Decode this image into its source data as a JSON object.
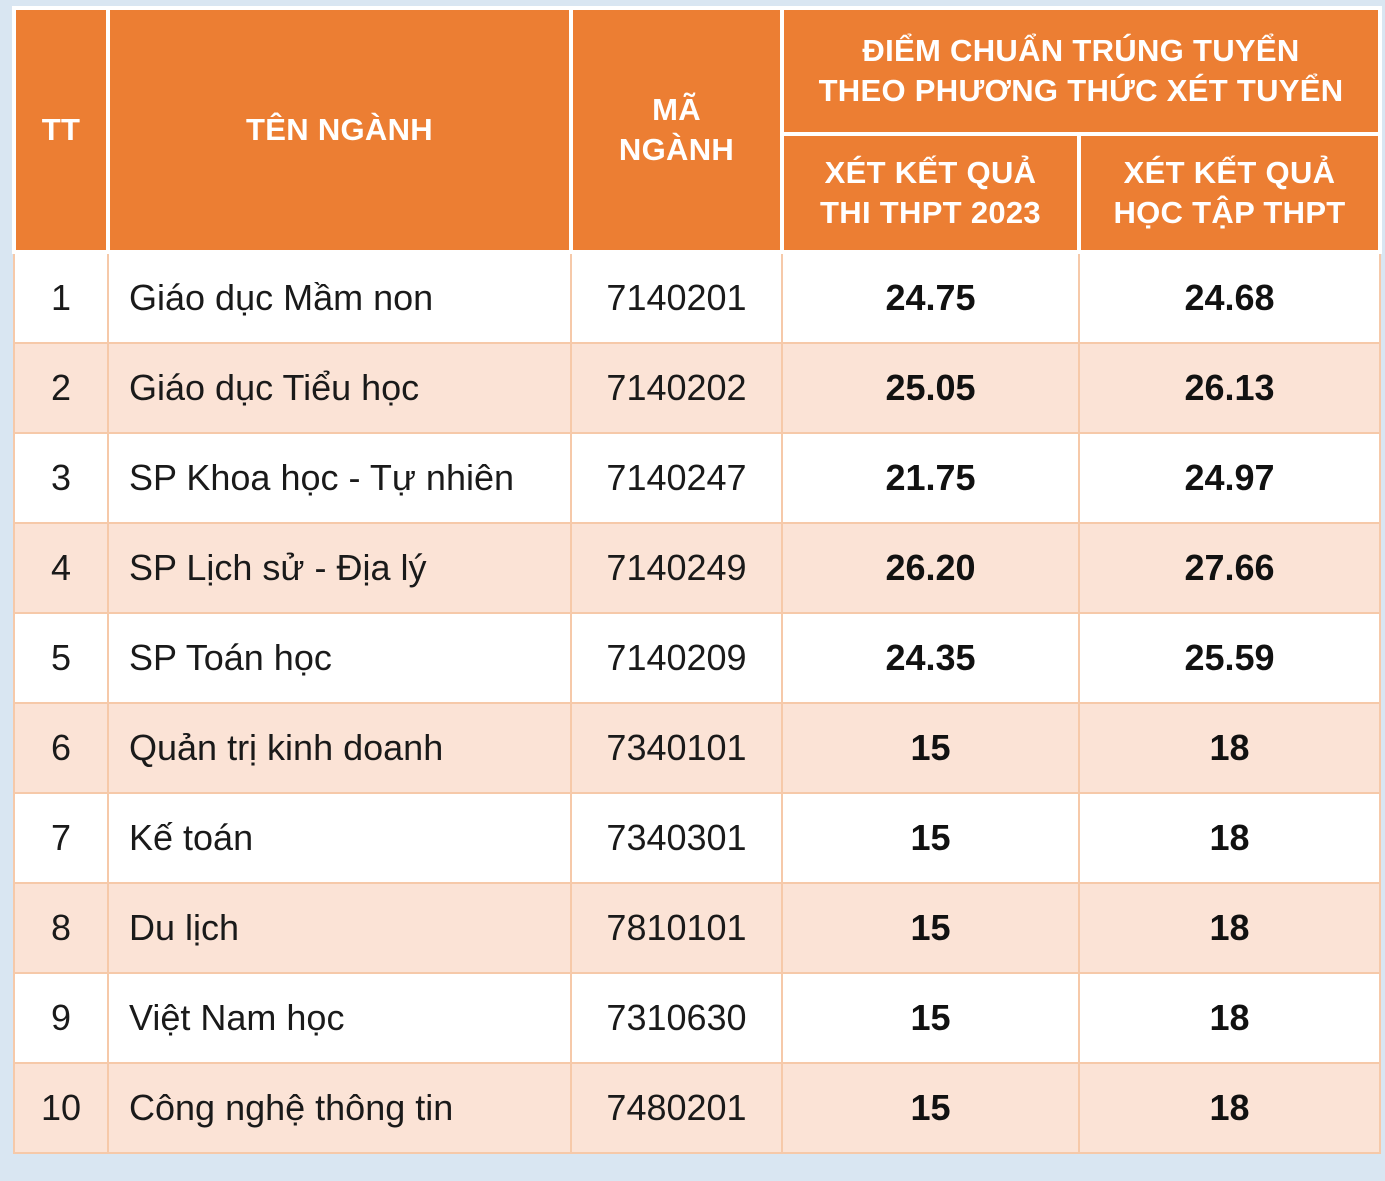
{
  "header": {
    "tt": "TT",
    "name": "TÊN NGÀNH",
    "code_line1": "MÃ",
    "code_line2": "NGÀNH",
    "group_line1": "ĐIỂM CHUẨN TRÚNG TUYỂN",
    "group_line2": "THEO PHƯƠNG THỨC XÉT TUYỂN",
    "col1_line1": "XÉT KẾT QUẢ",
    "col1_line2": "THI THPT 2023",
    "col2_line1": "XÉT KẾT QUẢ",
    "col2_line2": "HỌC TẬP THPT"
  },
  "rows": [
    {
      "tt": "1",
      "name": "Giáo dục Mầm non",
      "code": "7140201",
      "score_exam": "24.75",
      "score_transcript": "24.68"
    },
    {
      "tt": "2",
      "name": "Giáo dục Tiểu học",
      "code": "7140202",
      "score_exam": "25.05",
      "score_transcript": "26.13"
    },
    {
      "tt": "3",
      "name": "SP Khoa học - Tự nhiên",
      "code": "7140247",
      "score_exam": "21.75",
      "score_transcript": "24.97"
    },
    {
      "tt": "4",
      "name": "SP Lịch sử - Địa lý",
      "code": "7140249",
      "score_exam": "26.20",
      "score_transcript": "27.66"
    },
    {
      "tt": "5",
      "name": "SP Toán học",
      "code": "7140209",
      "score_exam": "24.35",
      "score_transcript": "25.59"
    },
    {
      "tt": "6",
      "name": "Quản trị kinh doanh",
      "code": "7340101",
      "score_exam": "15",
      "score_transcript": "18"
    },
    {
      "tt": "7",
      "name": "Kế toán",
      "code": "7340301",
      "score_exam": "15",
      "score_transcript": "18"
    },
    {
      "tt": "8",
      "name": "Du lịch",
      "code": "7810101",
      "score_exam": "15",
      "score_transcript": "18"
    },
    {
      "tt": "9",
      "name": "Việt Nam học",
      "code": "7310630",
      "score_exam": "15",
      "score_transcript": "18"
    },
    {
      "tt": "10",
      "name": "Công nghệ thông tin",
      "code": "7480201",
      "score_exam": "15",
      "score_transcript": "18"
    }
  ],
  "colors": {
    "header_bg": "#ec7e33",
    "row_alt_bg": "#fbe3d6",
    "page_bg": "#d9e6f2"
  }
}
